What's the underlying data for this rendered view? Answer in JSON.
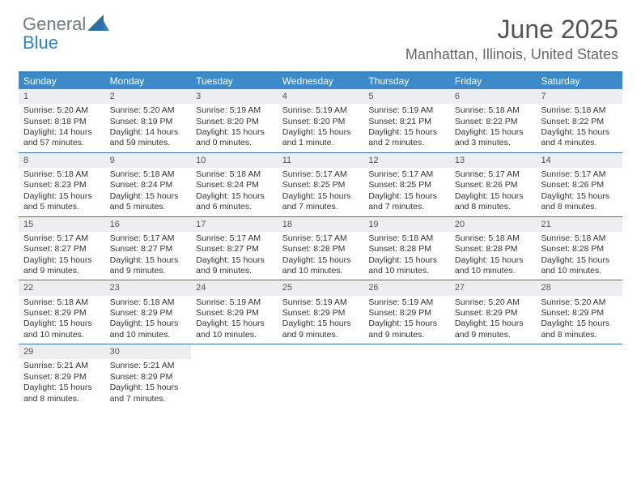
{
  "brand": {
    "line1": "General",
    "line2": "Blue"
  },
  "colors": {
    "brand_gray": "#6f7a82",
    "brand_blue": "#2f83c5",
    "header_bg": "#3b8bc9",
    "rule": "#3b76a8",
    "daynum_bg": "#eceeef",
    "text": "#333333",
    "bg": "#ffffff"
  },
  "typography": {
    "title_fontsize": 32,
    "location_fontsize": 18,
    "dayheader_fontsize": 12,
    "cell_fontsize": 10.5
  },
  "title": "June 2025",
  "location": "Manhattan, Illinois, United States",
  "day_names": [
    "Sunday",
    "Monday",
    "Tuesday",
    "Wednesday",
    "Thursday",
    "Friday",
    "Saturday"
  ],
  "layout": {
    "columns": 7,
    "rows": 5,
    "start_day_index": 0,
    "total_days": 30
  },
  "days": [
    {
      "n": 1,
      "sr": "5:20 AM",
      "ss": "8:18 PM",
      "dl": "14 hours and 57 minutes."
    },
    {
      "n": 2,
      "sr": "5:20 AM",
      "ss": "8:19 PM",
      "dl": "14 hours and 59 minutes."
    },
    {
      "n": 3,
      "sr": "5:19 AM",
      "ss": "8:20 PM",
      "dl": "15 hours and 0 minutes."
    },
    {
      "n": 4,
      "sr": "5:19 AM",
      "ss": "8:20 PM",
      "dl": "15 hours and 1 minute."
    },
    {
      "n": 5,
      "sr": "5:19 AM",
      "ss": "8:21 PM",
      "dl": "15 hours and 2 minutes."
    },
    {
      "n": 6,
      "sr": "5:18 AM",
      "ss": "8:22 PM",
      "dl": "15 hours and 3 minutes."
    },
    {
      "n": 7,
      "sr": "5:18 AM",
      "ss": "8:22 PM",
      "dl": "15 hours and 4 minutes."
    },
    {
      "n": 8,
      "sr": "5:18 AM",
      "ss": "8:23 PM",
      "dl": "15 hours and 5 minutes."
    },
    {
      "n": 9,
      "sr": "5:18 AM",
      "ss": "8:24 PM",
      "dl": "15 hours and 5 minutes."
    },
    {
      "n": 10,
      "sr": "5:18 AM",
      "ss": "8:24 PM",
      "dl": "15 hours and 6 minutes."
    },
    {
      "n": 11,
      "sr": "5:17 AM",
      "ss": "8:25 PM",
      "dl": "15 hours and 7 minutes."
    },
    {
      "n": 12,
      "sr": "5:17 AM",
      "ss": "8:25 PM",
      "dl": "15 hours and 7 minutes."
    },
    {
      "n": 13,
      "sr": "5:17 AM",
      "ss": "8:26 PM",
      "dl": "15 hours and 8 minutes."
    },
    {
      "n": 14,
      "sr": "5:17 AM",
      "ss": "8:26 PM",
      "dl": "15 hours and 8 minutes."
    },
    {
      "n": 15,
      "sr": "5:17 AM",
      "ss": "8:27 PM",
      "dl": "15 hours and 9 minutes."
    },
    {
      "n": 16,
      "sr": "5:17 AM",
      "ss": "8:27 PM",
      "dl": "15 hours and 9 minutes."
    },
    {
      "n": 17,
      "sr": "5:17 AM",
      "ss": "8:27 PM",
      "dl": "15 hours and 9 minutes."
    },
    {
      "n": 18,
      "sr": "5:17 AM",
      "ss": "8:28 PM",
      "dl": "15 hours and 10 minutes."
    },
    {
      "n": 19,
      "sr": "5:18 AM",
      "ss": "8:28 PM",
      "dl": "15 hours and 10 minutes."
    },
    {
      "n": 20,
      "sr": "5:18 AM",
      "ss": "8:28 PM",
      "dl": "15 hours and 10 minutes."
    },
    {
      "n": 21,
      "sr": "5:18 AM",
      "ss": "8:28 PM",
      "dl": "15 hours and 10 minutes."
    },
    {
      "n": 22,
      "sr": "5:18 AM",
      "ss": "8:29 PM",
      "dl": "15 hours and 10 minutes."
    },
    {
      "n": 23,
      "sr": "5:18 AM",
      "ss": "8:29 PM",
      "dl": "15 hours and 10 minutes."
    },
    {
      "n": 24,
      "sr": "5:19 AM",
      "ss": "8:29 PM",
      "dl": "15 hours and 10 minutes."
    },
    {
      "n": 25,
      "sr": "5:19 AM",
      "ss": "8:29 PM",
      "dl": "15 hours and 9 minutes."
    },
    {
      "n": 26,
      "sr": "5:19 AM",
      "ss": "8:29 PM",
      "dl": "15 hours and 9 minutes."
    },
    {
      "n": 27,
      "sr": "5:20 AM",
      "ss": "8:29 PM",
      "dl": "15 hours and 9 minutes."
    },
    {
      "n": 28,
      "sr": "5:20 AM",
      "ss": "8:29 PM",
      "dl": "15 hours and 8 minutes."
    },
    {
      "n": 29,
      "sr": "5:21 AM",
      "ss": "8:29 PM",
      "dl": "15 hours and 8 minutes."
    },
    {
      "n": 30,
      "sr": "5:21 AM",
      "ss": "8:29 PM",
      "dl": "15 hours and 7 minutes."
    }
  ],
  "labels": {
    "sunrise": "Sunrise:",
    "sunset": "Sunset:",
    "daylight": "Daylight:"
  }
}
